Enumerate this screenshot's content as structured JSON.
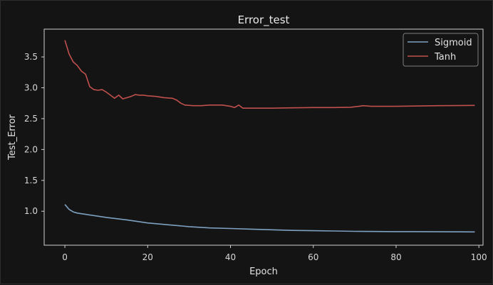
{
  "colors": {
    "background": "#141414",
    "axes": "#cfcfcf",
    "text": "#e2e2e2",
    "sigmoid": "#7ea1c1",
    "tanh": "#c0504d"
  },
  "chart_data": {
    "type": "line",
    "title": "Error_test",
    "xlabel": "Epoch",
    "ylabel": "Test_Error",
    "xlim": [
      -5,
      101
    ],
    "ylim": [
      0.45,
      3.95
    ],
    "xticks": [
      0,
      20,
      40,
      60,
      80,
      100
    ],
    "yticks": [
      1.0,
      1.5,
      2.0,
      2.5,
      3.0,
      3.5
    ],
    "ytick_labels": [
      "1.0",
      "1.5",
      "2.0",
      "2.5",
      "3.0",
      "3.5"
    ],
    "grid": false,
    "legend": "top-right",
    "series": [
      {
        "name": "Sigmoid",
        "color": "#7ea1c1",
        "points": [
          [
            0,
            1.11
          ],
          [
            1,
            1.03
          ],
          [
            2,
            0.99
          ],
          [
            3,
            0.97
          ],
          [
            5,
            0.95
          ],
          [
            7,
            0.93
          ],
          [
            10,
            0.9
          ],
          [
            15,
            0.86
          ],
          [
            20,
            0.81
          ],
          [
            25,
            0.78
          ],
          [
            30,
            0.75
          ],
          [
            35,
            0.73
          ],
          [
            40,
            0.72
          ],
          [
            45,
            0.71
          ],
          [
            50,
            0.7
          ],
          [
            55,
            0.69
          ],
          [
            60,
            0.685
          ],
          [
            65,
            0.68
          ],
          [
            70,
            0.675
          ],
          [
            75,
            0.672
          ],
          [
            80,
            0.67
          ],
          [
            85,
            0.67
          ],
          [
            90,
            0.668
          ],
          [
            95,
            0.667
          ],
          [
            99,
            0.665
          ]
        ]
      },
      {
        "name": "Tanh",
        "color": "#c0504d",
        "points": [
          [
            0,
            3.77
          ],
          [
            1,
            3.55
          ],
          [
            2,
            3.42
          ],
          [
            3,
            3.36
          ],
          [
            4,
            3.27
          ],
          [
            5,
            3.22
          ],
          [
            6,
            3.02
          ],
          [
            7,
            2.97
          ],
          [
            8,
            2.96
          ],
          [
            9,
            2.97
          ],
          [
            10,
            2.93
          ],
          [
            11,
            2.88
          ],
          [
            12,
            2.83
          ],
          [
            13,
            2.88
          ],
          [
            14,
            2.82
          ],
          [
            15,
            2.84
          ],
          [
            16,
            2.86
          ],
          [
            17,
            2.89
          ],
          [
            18,
            2.88
          ],
          [
            19,
            2.88
          ],
          [
            20,
            2.87
          ],
          [
            22,
            2.86
          ],
          [
            24,
            2.84
          ],
          [
            26,
            2.83
          ],
          [
            27,
            2.8
          ],
          [
            28,
            2.75
          ],
          [
            29,
            2.72
          ],
          [
            31,
            2.71
          ],
          [
            33,
            2.71
          ],
          [
            35,
            2.72
          ],
          [
            37,
            2.72
          ],
          [
            38,
            2.72
          ],
          [
            39,
            2.71
          ],
          [
            40,
            2.7
          ],
          [
            41,
            2.68
          ],
          [
            42,
            2.72
          ],
          [
            43,
            2.67
          ],
          [
            45,
            2.67
          ],
          [
            50,
            2.67
          ],
          [
            55,
            2.675
          ],
          [
            60,
            2.68
          ],
          [
            65,
            2.68
          ],
          [
            69,
            2.685
          ],
          [
            71,
            2.7
          ],
          [
            72,
            2.71
          ],
          [
            74,
            2.7
          ],
          [
            80,
            2.7
          ],
          [
            90,
            2.71
          ],
          [
            99,
            2.715
          ]
        ]
      }
    ]
  }
}
